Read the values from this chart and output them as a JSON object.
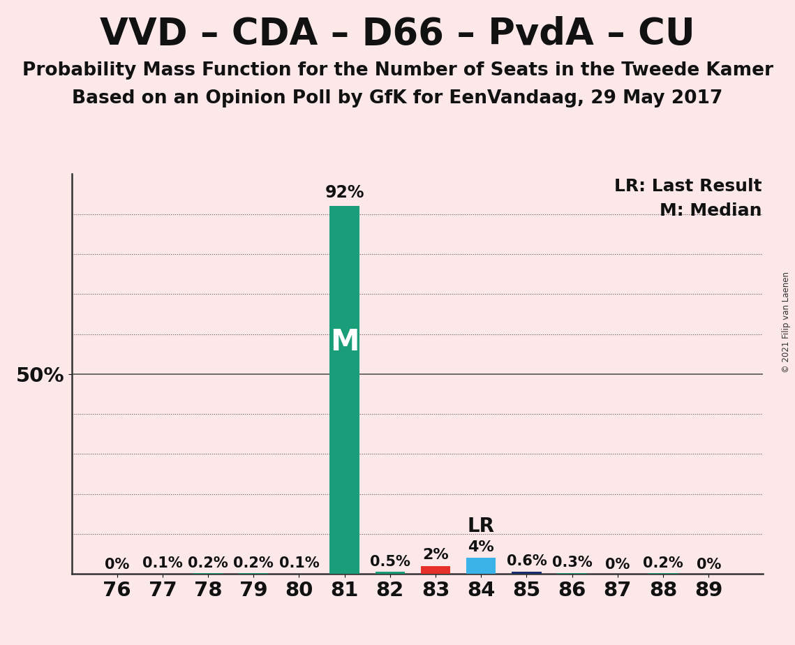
{
  "title": "VVD – CDA – D66 – PvdA – CU",
  "subtitle1": "Probability Mass Function for the Number of Seats in the Tweede Kamer",
  "subtitle2": "Based on an Opinion Poll by GfK for EenVandaag, 29 May 2017",
  "copyright": "© 2021 Filip van Laenen",
  "seats": [
    76,
    77,
    78,
    79,
    80,
    81,
    82,
    83,
    84,
    85,
    86,
    87,
    88,
    89
  ],
  "probabilities": [
    0.0,
    0.1,
    0.2,
    0.2,
    0.1,
    92.0,
    0.5,
    2.0,
    4.0,
    0.6,
    0.3,
    0.0,
    0.2,
    0.0
  ],
  "bar_colors": [
    "#1a9e7a",
    "#1a9e7a",
    "#1a9e7a",
    "#1a9e7a",
    "#1a9e7a",
    "#1a9e7a",
    "#1a9e7a",
    "#e8302a",
    "#3bb3e8",
    "#1a2e6e",
    "#1a9e7a",
    "#1a9e7a",
    "#1a9e7a",
    "#1a9e7a"
  ],
  "median_seat": 81,
  "lr_seat": 84,
  "label_50": "50%",
  "background_color": "#fce8e8",
  "grid_color": "#555555",
  "bar_label_fontsize": 15,
  "title_fontsize": 38,
  "subtitle_fontsize": 19,
  "tick_fontsize": 21,
  "legend_fontsize": 18,
  "y_gridlines": [
    10,
    20,
    30,
    40,
    50,
    60,
    70,
    80,
    90
  ],
  "ylim": [
    0,
    100
  ],
  "prob_labels": [
    "0%",
    "0.1%",
    "0.2%",
    "0.2%",
    "0.1%",
    "92%",
    "0.5%",
    "2%",
    "4%",
    "0.6%",
    "0.3%",
    "0%",
    "0.2%",
    "0%"
  ],
  "bar_width": 0.65,
  "xlim_left": 75.0,
  "xlim_right": 90.2
}
